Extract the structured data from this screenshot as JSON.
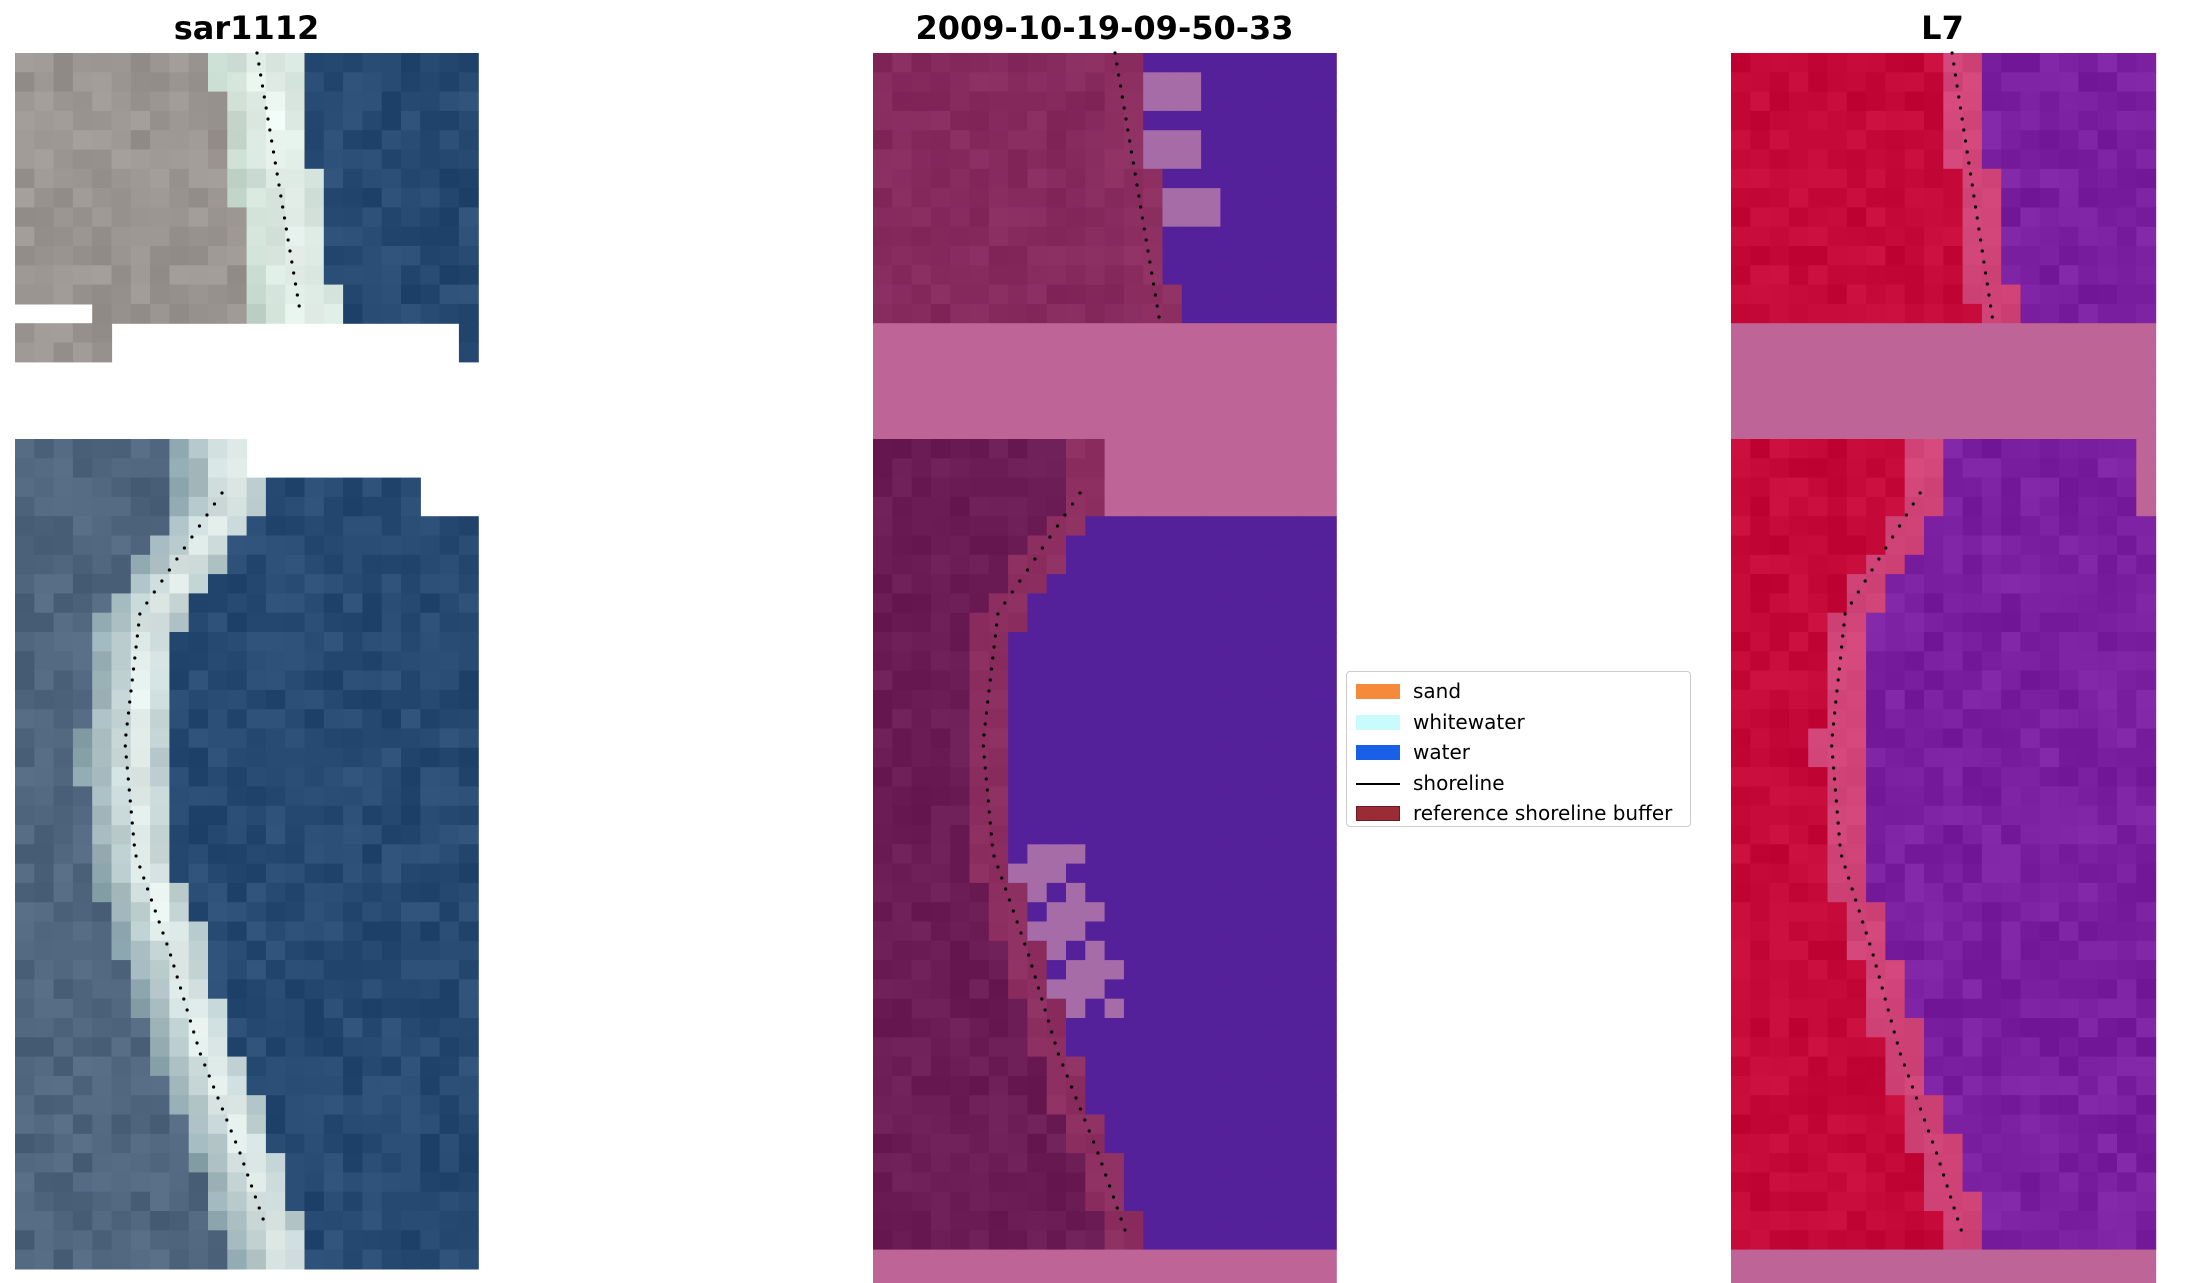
{
  "panels": [
    {
      "title": "sar1112",
      "kind": "rgb"
    },
    {
      "title": "2009-10-19-09-50-33",
      "kind": "classified"
    },
    {
      "title": "L7",
      "kind": "index"
    }
  ],
  "legend": {
    "items": [
      {
        "label": "sand",
        "color": "#f58a3a",
        "kind": "patch"
      },
      {
        "label": "whitewater",
        "color": "#c8fbfb",
        "kind": "patch"
      },
      {
        "label": "water",
        "color": "#1a5fe8",
        "kind": "patch"
      },
      {
        "label": "shoreline",
        "color": "#000000",
        "kind": "line"
      },
      {
        "label": "reference shoreline buffer",
        "color": "#9b2b35",
        "kind": "patch"
      }
    ]
  },
  "colors": {
    "nodata_band": "#be6496",
    "land_buffer": "#862a5e",
    "land_dark": "#6b1c55",
    "water_class": "#55219a",
    "whitewater_class": "#a56ca8",
    "rgb_land": "#9a9590",
    "rgb_water": "#274a72",
    "rgb_foam": "#e8f2ee",
    "index_land": "#c50a3a",
    "index_water": "#7a1fa0",
    "shoreline_dots": "#000000"
  }
}
